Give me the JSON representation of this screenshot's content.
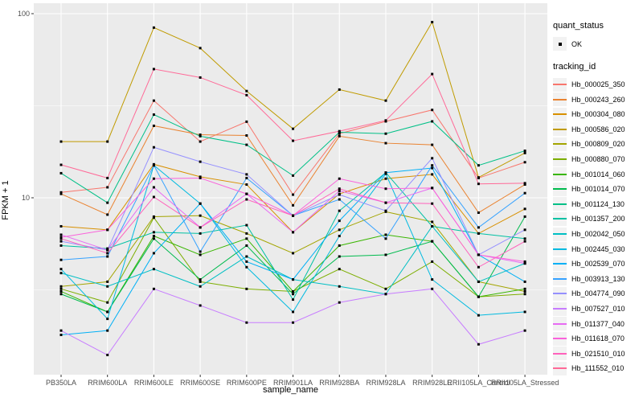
{
  "figure_type": "ggplot2-style line chart",
  "colors": {
    "panel_background": "#EBEBEB",
    "gridline": "#FFFFFF",
    "point": "#000000",
    "axis_text": "#4D4D4D",
    "title_text": "#000000",
    "legend_key_background": "#F2F2F2"
  },
  "legend": {
    "quant_status": {
      "title": "quant_status",
      "items": [
        {
          "label": "OK",
          "glyph": "black-square-point"
        }
      ]
    },
    "tracking_id": {
      "title": "tracking_id"
    }
  },
  "chart_data": {
    "type": "line",
    "title": "",
    "xlabel": "sample_name",
    "ylabel": "FPKM + 1",
    "y_scale": "log10",
    "ylim": [
      1.2,
      110
    ],
    "y_ticks": [
      {
        "label": "100",
        "value": 100
      },
      {
        "label": "10",
        "value": 10
      }
    ],
    "grid": {
      "major_y_values": [
        100,
        10
      ],
      "minor_y_values": [
        31.62,
        3.162
      ],
      "vertical_major_per_category": true
    },
    "legend_position": "right",
    "point_shape": "small-black-square",
    "categories": [
      "PB350LA",
      "RRIM600LA",
      "RRIM600LE",
      "RRIM600SE",
      "RRIM600PE",
      "RRIM901LA",
      "RRIM928BA",
      "RRIM928LA",
      "RRIM928LE",
      "RRII105LA_Control",
      "RRII105LA_Stressed"
    ],
    "series": [
      {
        "name": "Hb_000025_350",
        "color": "#F8766D",
        "values": [
          10.7,
          11.4,
          33.7,
          20.2,
          25.9,
          10.4,
          22.3,
          26.0,
          30.0,
          12.8,
          15.6
        ]
      },
      {
        "name": "Hb_000243_260",
        "color": "#EA8331",
        "values": [
          10.5,
          8.1,
          24.6,
          22.0,
          21.8,
          9.1,
          21.6,
          19.8,
          19.4,
          8.3,
          11.8
        ]
      },
      {
        "name": "Hb_000304_080",
        "color": "#D89000",
        "values": [
          7.0,
          6.7,
          15.2,
          13.0,
          11.8,
          6.5,
          10.5,
          12.7,
          13.4,
          6.4,
          8.7
        ]
      },
      {
        "name": "Hb_000586_020",
        "color": "#C09B00",
        "values": [
          20.2,
          20.2,
          84.0,
          65.0,
          38.0,
          23.7,
          38.7,
          33.7,
          90.0,
          12.9,
          17.5
        ]
      },
      {
        "name": "Hb_000809_020",
        "color": "#A3A500",
        "values": [
          3.3,
          3.5,
          7.9,
          8.0,
          6.4,
          5.0,
          6.7,
          8.4,
          7.4,
          3.5,
          3.1
        ]
      },
      {
        "name": "Hb_000880_070",
        "color": "#7CAE00",
        "values": [
          3.2,
          2.7,
          7.8,
          3.5,
          3.2,
          3.1,
          4.1,
          3.2,
          4.5,
          2.9,
          3.0
        ]
      },
      {
        "name": "Hb_001014_060",
        "color": "#39B600",
        "values": [
          3.1,
          2.4,
          6.2,
          4.9,
          6.0,
          3.1,
          5.5,
          6.3,
          5.8,
          2.9,
          3.2
        ]
      },
      {
        "name": "Hb_001014_070",
        "color": "#00BB4E",
        "values": [
          3.0,
          2.4,
          6.0,
          3.6,
          5.5,
          3.0,
          4.8,
          4.9,
          5.8,
          2.9,
          7.9
        ]
      },
      {
        "name": "Hb_001124_130",
        "color": "#00C087",
        "values": [
          13.6,
          9.4,
          28.3,
          21.6,
          19.4,
          13.2,
          22.7,
          22.3,
          26.0,
          15.0,
          18.0
        ]
      },
      {
        "name": "Hb_001357_200",
        "color": "#00C1A3",
        "values": [
          5.5,
          5.3,
          6.5,
          6.4,
          7.1,
          2.8,
          8.5,
          13.7,
          7.0,
          6.4,
          6.0
        ]
      },
      {
        "name": "Hb_002042_050",
        "color": "#00BFC4",
        "values": [
          3.9,
          3.3,
          4.1,
          3.3,
          4.8,
          3.6,
          3.3,
          3.0,
          7.0,
          3.5,
          4.4
        ]
      },
      {
        "name": "Hb_002445_030",
        "color": "#00BAE0",
        "values": [
          4.1,
          2.2,
          15.0,
          9.3,
          4.2,
          2.4,
          6.2,
          13.5,
          3.6,
          2.3,
          2.4
        ]
      },
      {
        "name": "Hb_002539_070",
        "color": "#00B0F6",
        "values": [
          1.8,
          1.9,
          5.0,
          9.3,
          4.5,
          3.6,
          7.5,
          13.7,
          14.5,
          4.9,
          3.5
        ]
      },
      {
        "name": "Hb_003913_130",
        "color": "#35A2FF",
        "values": [
          4.6,
          4.8,
          15.0,
          5.1,
          12.8,
          8.0,
          9.8,
          6.0,
          15.0,
          6.9,
          10.6
        ]
      },
      {
        "name": "Hb_004774_090",
        "color": "#9590FF",
        "values": [
          5.8,
          5.2,
          18.8,
          15.7,
          13.4,
          8.0,
          10.4,
          8.5,
          16.4,
          4.9,
          6.7
        ]
      },
      {
        "name": "Hb_007527_010",
        "color": "#C77CFF",
        "values": [
          1.9,
          1.4,
          3.2,
          2.6,
          2.1,
          2.1,
          2.7,
          3.0,
          3.2,
          1.6,
          1.9
        ]
      },
      {
        "name": "Hb_011377_040",
        "color": "#E76BF3",
        "values": [
          6.3,
          5.2,
          11.4,
          6.9,
          10.5,
          6.5,
          10.9,
          9.4,
          11.3,
          4.9,
          4.4
        ]
      },
      {
        "name": "Hb_011618_070",
        "color": "#FA62DB",
        "values": [
          6.1,
          6.7,
          12.7,
          12.8,
          10.5,
          8.0,
          12.7,
          11.2,
          11.3,
          4.9,
          4.5
        ]
      },
      {
        "name": "Hb_021510_010",
        "color": "#FF62BC",
        "values": [
          6.0,
          5.0,
          10.1,
          6.9,
          9.8,
          8.0,
          11.2,
          9.4,
          9.3,
          4.2,
          5.8
        ]
      },
      {
        "name": "Hb_111552_010",
        "color": "#FF6A98",
        "values": [
          15.1,
          12.8,
          50.0,
          45.0,
          36.1,
          20.4,
          23.0,
          26.3,
          47.0,
          11.9,
          12.0
        ]
      }
    ]
  }
}
